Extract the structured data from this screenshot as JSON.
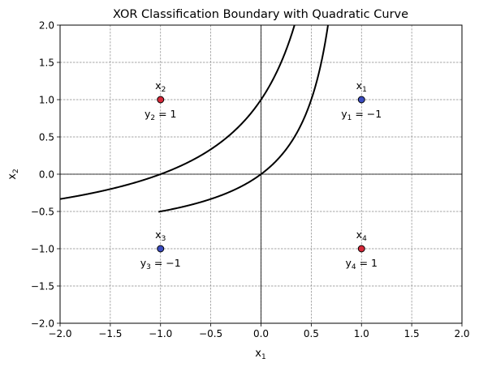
{
  "chart_data": {
    "type": "scatter",
    "title": "XOR Classification Boundary with Quadratic Curve",
    "xlabel": {
      "base": "x",
      "sub": "1"
    },
    "ylabel": {
      "base": "x",
      "sub": "2"
    },
    "xlim": [
      -2.0,
      2.0
    ],
    "ylim": [
      -2.0,
      2.0
    ],
    "xticks": [
      "−2.0",
      "−1.5",
      "−1.0",
      "−0.5",
      "0.0",
      "0.5",
      "1.0",
      "1.5",
      "2.0"
    ],
    "yticks": [
      "−2.0",
      "−1.5",
      "−1.0",
      "−0.5",
      "0.0",
      "0.5",
      "1.0",
      "1.5",
      "2.0"
    ],
    "xtick_values": [
      -2.0,
      -1.5,
      -1.0,
      -0.5,
      0.0,
      0.5,
      1.0,
      1.5,
      2.0
    ],
    "ytick_values": [
      -2.0,
      -1.5,
      -1.0,
      -0.5,
      0.0,
      0.5,
      1.0,
      1.5,
      2.0
    ],
    "grid": true,
    "grid_style": "dashed",
    "points": [
      {
        "x": 1,
        "y": 1,
        "name_base": "x",
        "name_sub": "1",
        "label_base": "y",
        "label_sub": "1",
        "label_rest": " = −1",
        "color": "#3b4cc0"
      },
      {
        "x": -1,
        "y": 1,
        "name_base": "x",
        "name_sub": "2",
        "label_base": "y",
        "label_sub": "2",
        "label_rest": " = 1",
        "color": "#d62839"
      },
      {
        "x": -1,
        "y": -1,
        "name_base": "x",
        "name_sub": "3",
        "label_base": "y",
        "label_sub": "3",
        "label_rest": " = −1",
        "color": "#3b4cc0"
      },
      {
        "x": 1,
        "y": -1,
        "name_base": "x",
        "name_sub": "4",
        "label_base": "y",
        "label_sub": "4",
        "label_rest": " = 1",
        "color": "#d62839"
      }
    ],
    "boundary": {
      "equation": "x1 - x2 + x1*x2 = 0 and x1 - x2 + x1*x2 = -1",
      "color": "#000000"
    }
  }
}
